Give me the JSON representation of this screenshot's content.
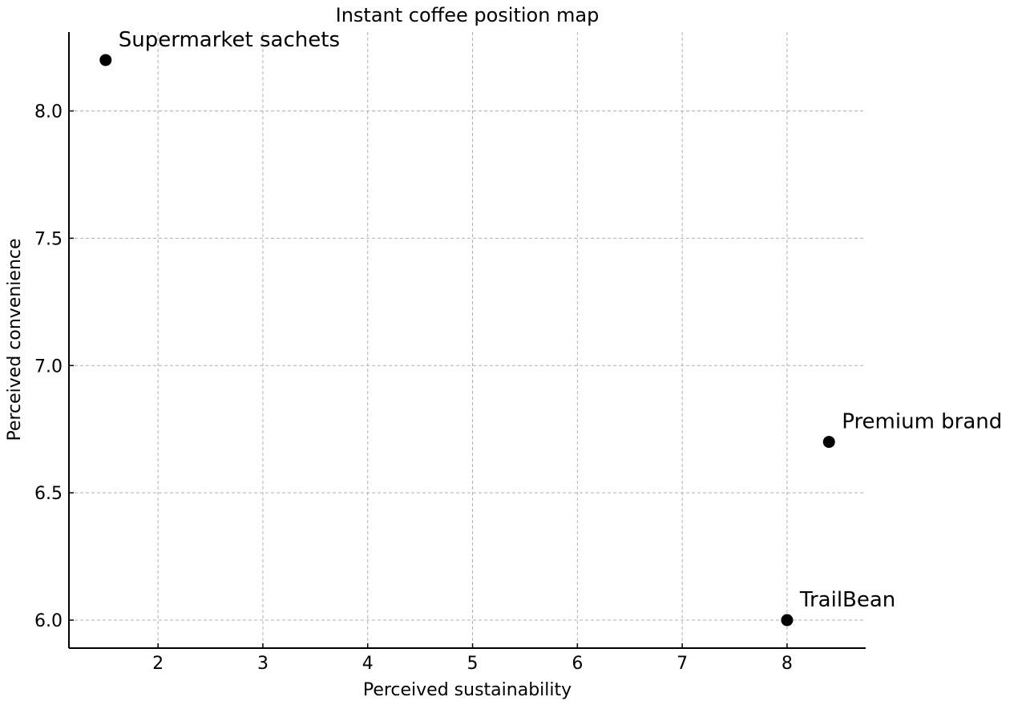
{
  "chart_data": {
    "type": "scatter",
    "title": "Instant coffee position map",
    "xlabel": "Perceived sustainability",
    "ylabel": "Perceived convenience",
    "xlim": [
      1.15,
      8.75
    ],
    "ylim": [
      5.89,
      8.31
    ],
    "x_ticks": [
      2,
      3,
      4,
      5,
      6,
      7,
      8
    ],
    "x_tick_labels": [
      "2",
      "3",
      "4",
      "5",
      "6",
      "7",
      "8"
    ],
    "y_ticks": [
      6.0,
      6.5,
      7.0,
      7.5,
      8.0
    ],
    "y_tick_labels": [
      "6.0",
      "6.5",
      "7.0",
      "7.5",
      "8.0"
    ],
    "grid": true,
    "marker_color": "#000000",
    "points": [
      {
        "label": "Supermarket sachets",
        "x": 1.5,
        "y": 8.2
      },
      {
        "label": "Premium brand",
        "x": 8.4,
        "y": 6.7
      },
      {
        "label": "TrailBean",
        "x": 8.0,
        "y": 6.0
      }
    ]
  }
}
